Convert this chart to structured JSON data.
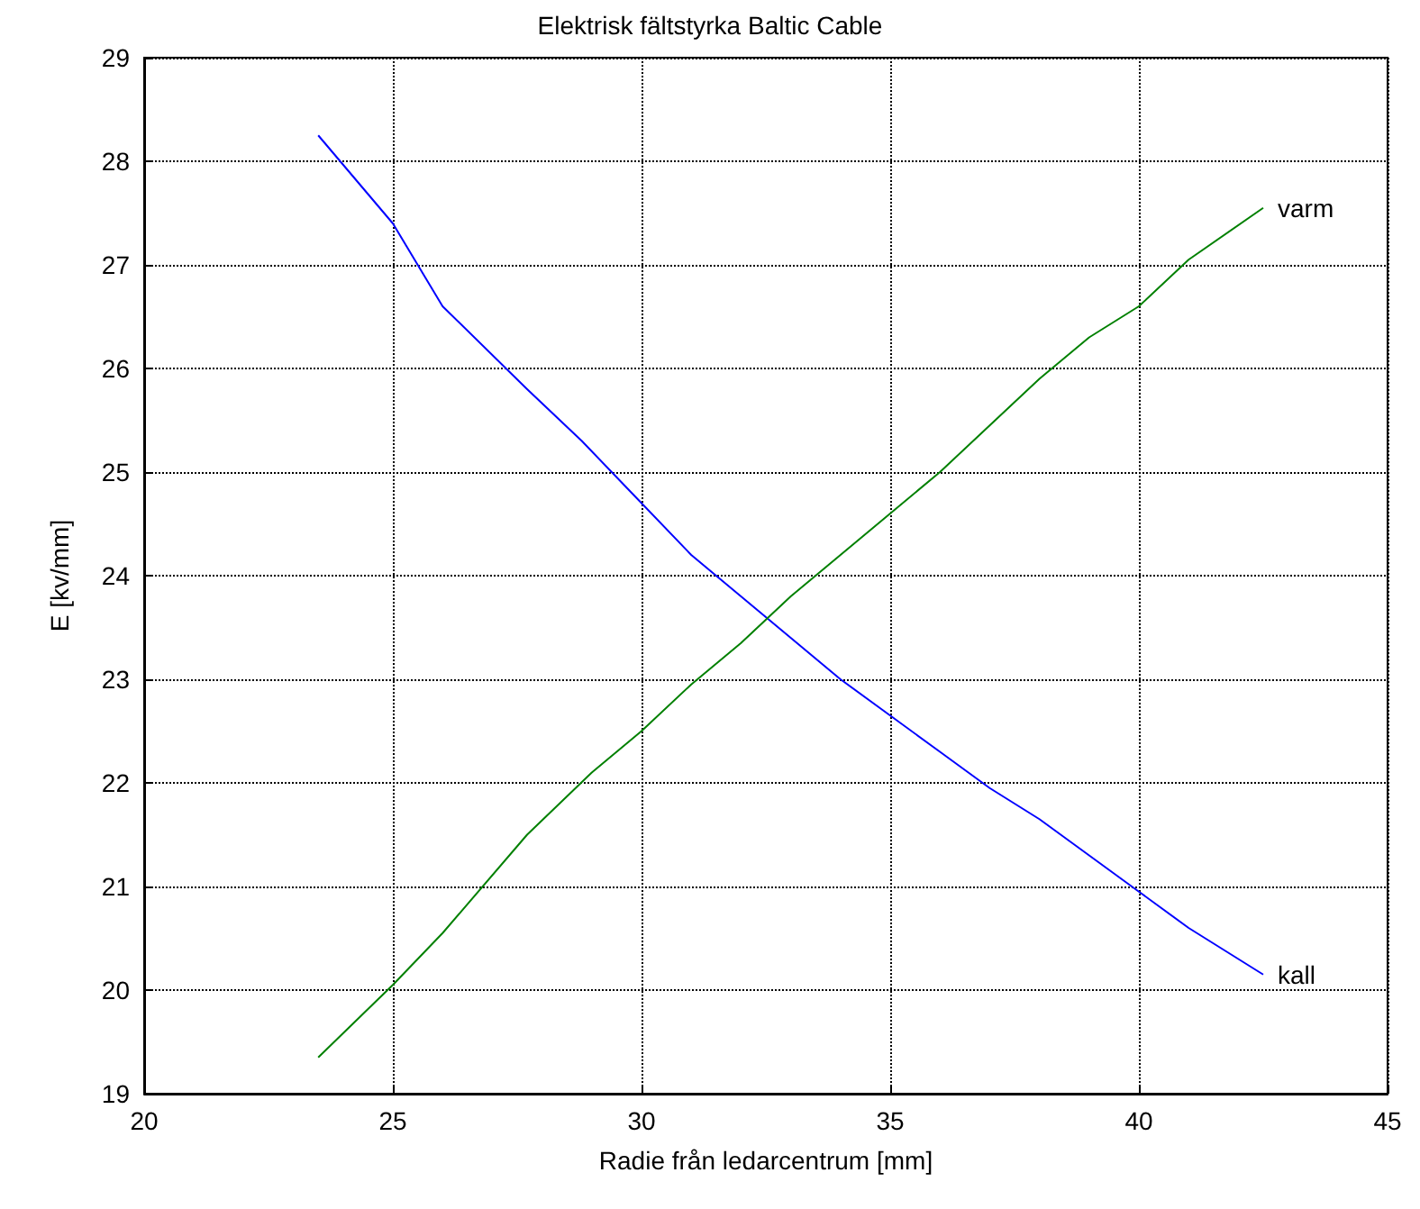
{
  "chart_data": {
    "type": "line",
    "title": "Elektrisk fältstyrka Baltic Cable",
    "xlabel": "Radie från ledarcentrum [mm]",
    "ylabel": "E [kv/mm]",
    "xlim": [
      20,
      45
    ],
    "xticks": [
      20,
      25,
      30,
      35,
      40,
      45
    ],
    "ylim": [
      19,
      29
    ],
    "yticks": [
      19,
      20,
      21,
      22,
      23,
      24,
      25,
      26,
      27,
      28,
      29
    ],
    "grid": true,
    "line_style": "solid",
    "marker": "none",
    "series": [
      {
        "name": "kall",
        "color": "#0000ff",
        "x": [
          23.5,
          25,
          26,
          27.7,
          28.8,
          29.8,
          31,
          32,
          33,
          34,
          35,
          36,
          37,
          38,
          39,
          40,
          41,
          42.5
        ],
        "values": [
          28.25,
          27.4,
          26.6,
          25.8,
          25.3,
          24.8,
          24.2,
          23.8,
          23.4,
          23.0,
          22.65,
          22.3,
          21.95,
          21.65,
          21.3,
          20.95,
          20.6,
          20.15
        ]
      },
      {
        "name": "varm",
        "color": "#008000",
        "x": [
          23.5,
          25,
          26,
          27.7,
          29,
          30,
          31,
          32,
          33,
          33.5,
          35,
          36,
          37,
          38,
          39,
          40,
          41,
          42.5
        ],
        "values": [
          19.35,
          20.05,
          20.55,
          21.5,
          22.1,
          22.5,
          22.95,
          23.35,
          23.8,
          24.0,
          24.6,
          25.0,
          25.45,
          25.9,
          26.3,
          26.6,
          27.05,
          27.55
        ]
      }
    ]
  }
}
